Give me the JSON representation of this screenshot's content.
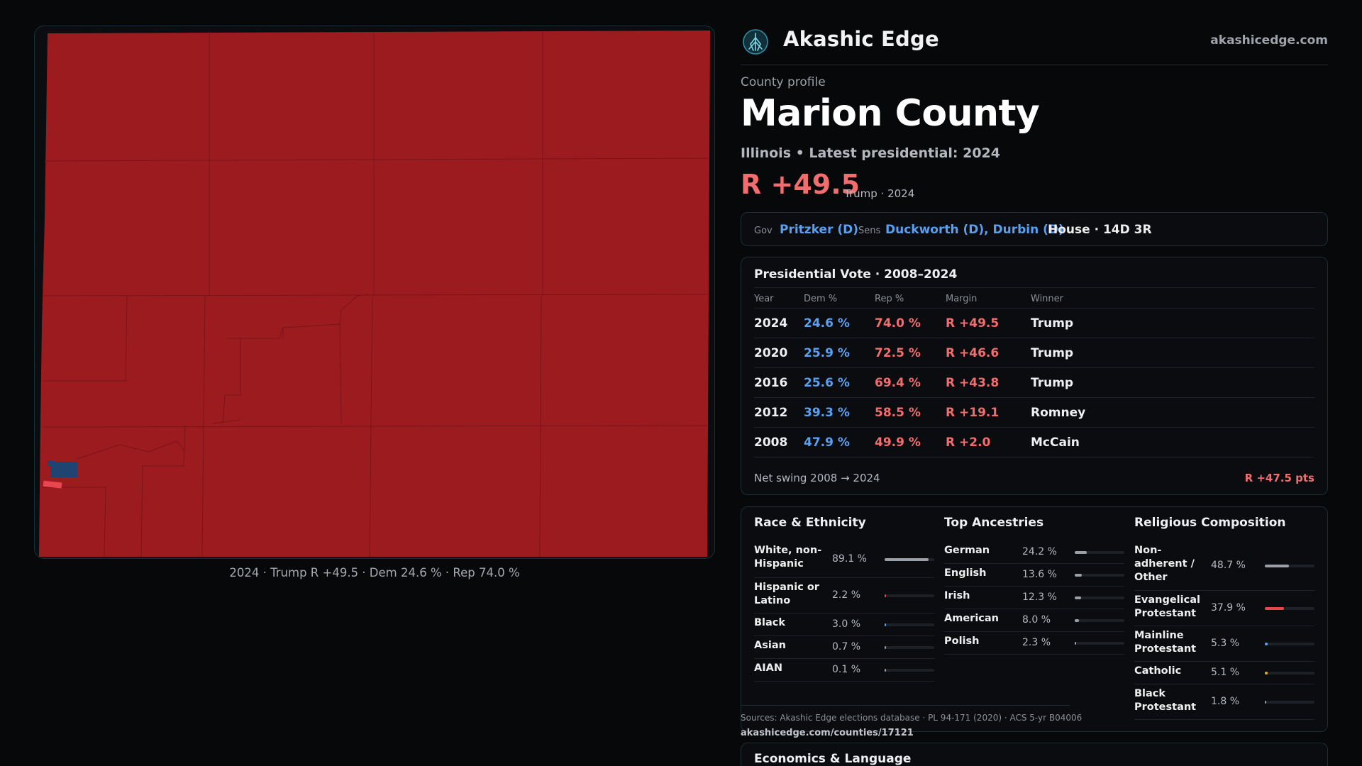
{
  "brand": {
    "name": "Akashic Edge",
    "url": "akashicedge.com",
    "logo_icon": "tree-of-life-icon"
  },
  "map": {
    "caption": "2024 · Trump R +49.5 · Dem 24.6 % · Rep 74.0 %",
    "colors": {
      "rep": "#9b1b1f",
      "rep_light": "#e8474f",
      "dem": "#1f4472",
      "frame": "#173038"
    }
  },
  "profile": {
    "eyebrow": "County profile",
    "title": "Marion County",
    "subtitle": "Illinois • Latest presidential: 2024",
    "margin": "R +49.5",
    "margin_note": "Trump · 2024"
  },
  "officials": {
    "gov_label": "Gov",
    "gov": "Pritzker (D)",
    "sens_label": "Sens",
    "sens": "Duckworth (D), Durbin (D)",
    "house": "House · 14D 3R"
  },
  "presidential": {
    "title": "Presidential Vote · 2008–2024",
    "columns": [
      "Year",
      "Dem %",
      "Rep %",
      "Margin",
      "Winner"
    ],
    "rows": [
      {
        "year": "2024",
        "dem": "24.6 %",
        "rep": "74.0 %",
        "margin": "R +49.5",
        "winner": "Trump"
      },
      {
        "year": "2020",
        "dem": "25.9 %",
        "rep": "72.5 %",
        "margin": "R +46.6",
        "winner": "Trump"
      },
      {
        "year": "2016",
        "dem": "25.6 %",
        "rep": "69.4 %",
        "margin": "R +43.8",
        "winner": "Trump"
      },
      {
        "year": "2012",
        "dem": "39.3 %",
        "rep": "58.5 %",
        "margin": "R +19.1",
        "winner": "Romney"
      },
      {
        "year": "2008",
        "dem": "47.9 %",
        "rep": "49.9 %",
        "margin": "R +2.0",
        "winner": "McCain"
      }
    ],
    "swing_label": "Net swing 2008 → 2024",
    "swing_value": "R +47.5 pts"
  },
  "demographics": {
    "race": {
      "title": "Race & Ethnicity",
      "items": [
        {
          "label": "White, non-Hispanic",
          "pct": "89.1 %",
          "value": 89.1,
          "color": "#9aa0a6"
        },
        {
          "label": "Hispanic or Latino",
          "pct": "2.2 %",
          "value": 2.2,
          "color": "#e8474f"
        },
        {
          "label": "Black",
          "pct": "3.0 %",
          "value": 3.0,
          "color": "#5aa0f0"
        },
        {
          "label": "Asian",
          "pct": "0.7 %",
          "value": 0.7,
          "color": "#9aa0a6"
        },
        {
          "label": "AIAN",
          "pct": "0.1 %",
          "value": 0.1,
          "color": "#9aa0a6"
        }
      ]
    },
    "ancestry": {
      "title": "Top Ancestries",
      "items": [
        {
          "label": "German",
          "pct": "24.2 %",
          "value": 24.2,
          "color": "#9aa0a6"
        },
        {
          "label": "English",
          "pct": "13.6 %",
          "value": 13.6,
          "color": "#9aa0a6"
        },
        {
          "label": "Irish",
          "pct": "12.3 %",
          "value": 12.3,
          "color": "#9aa0a6"
        },
        {
          "label": "American",
          "pct": "8.0 %",
          "value": 8.0,
          "color": "#9aa0a6"
        },
        {
          "label": "Polish",
          "pct": "2.3 %",
          "value": 2.3,
          "color": "#9aa0a6"
        }
      ]
    },
    "religion": {
      "title": "Religious Composition",
      "items": [
        {
          "label": "Non-adherent / Other",
          "pct": "48.7 %",
          "value": 48.7,
          "color": "#9aa0a6"
        },
        {
          "label": "Evangelical Protestant",
          "pct": "37.9 %",
          "value": 37.9,
          "color": "#e8474f"
        },
        {
          "label": "Mainline Protestant",
          "pct": "5.3 %",
          "value": 5.3,
          "color": "#5aa0f0"
        },
        {
          "label": "Catholic",
          "pct": "5.1 %",
          "value": 5.1,
          "color": "#e8a838"
        },
        {
          "label": "Black Protestant",
          "pct": "1.8 %",
          "value": 1.8,
          "color": "#9aa0a6"
        }
      ]
    }
  },
  "sources": {
    "text": "Sources: Akashic Edge elections database · PL 94-171 (2020) · ACS 5-yr B04006",
    "url": "akashicedge.com/counties/17121"
  },
  "economics": {
    "title": "Economics & Language"
  }
}
